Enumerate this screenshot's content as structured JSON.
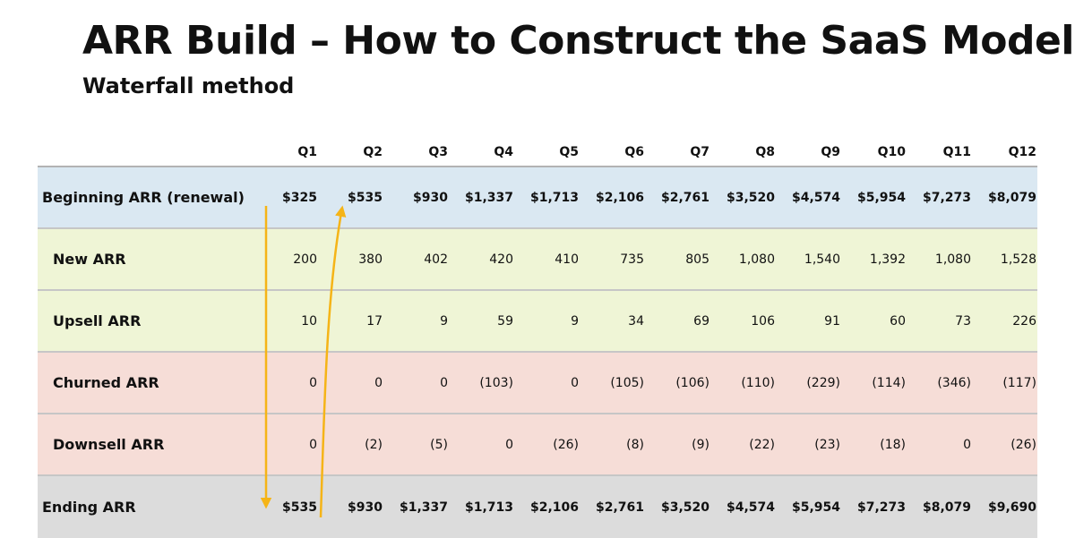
{
  "title": "ARR Build – How to Construct the SaaS Model",
  "subtitle": "Waterfall method",
  "colors": {
    "beginning_bg": "#dae8f2",
    "growth_bg": "#eff5d6",
    "loss_bg": "#f6ddd7",
    "ending_bg": "#dcdcdc",
    "arrow": "#f5b417"
  },
  "table": {
    "columns": [
      "Q1",
      "Q2",
      "Q3",
      "Q4",
      "Q5",
      "Q6",
      "Q7",
      "Q8",
      "Q9",
      "Q10",
      "Q11",
      "Q12"
    ],
    "rows": [
      {
        "label": "Beginning ARR (renewal)",
        "values": [
          "$325",
          "$535",
          "$930",
          "$1,337",
          "$1,713",
          "$2,106",
          "$2,761",
          "$3,520",
          "$4,574",
          "$5,954",
          "$7,273",
          "$8,079"
        ]
      },
      {
        "label": "New ARR",
        "values": [
          "200",
          "380",
          "402",
          "420",
          "410",
          "735",
          "805",
          "1,080",
          "1,540",
          "1,392",
          "1,080",
          "1,528"
        ]
      },
      {
        "label": "Upsell ARR",
        "values": [
          "10",
          "17",
          "9",
          "59",
          "9",
          "34",
          "69",
          "106",
          "91",
          "60",
          "73",
          "226"
        ]
      },
      {
        "label": "Churned ARR",
        "values": [
          "0",
          "0",
          "0",
          "(103)",
          "0",
          "(105)",
          "(106)",
          "(110)",
          "(229)",
          "(114)",
          "(346)",
          "(117)"
        ]
      },
      {
        "label": "Downsell ARR",
        "values": [
          "0",
          "(2)",
          "(5)",
          "0",
          "(26)",
          "(8)",
          "(9)",
          "(22)",
          "(23)",
          "(18)",
          "0",
          "(26)"
        ]
      },
      {
        "label": "Ending ARR",
        "values": [
          "$535",
          "$930",
          "$1,337",
          "$1,713",
          "$2,106",
          "$2,761",
          "$3,520",
          "$4,574",
          "$5,954",
          "$7,273",
          "$8,079",
          "$9,690"
        ]
      }
    ]
  }
}
